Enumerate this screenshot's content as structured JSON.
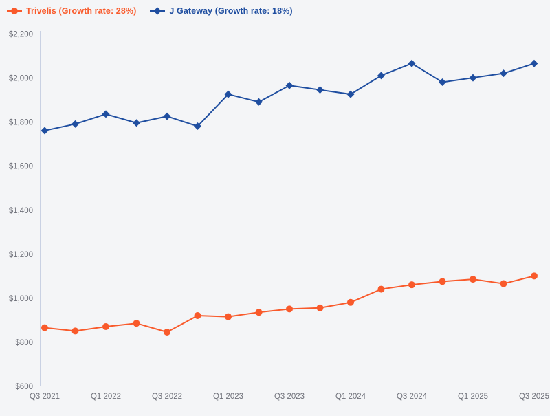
{
  "page": {
    "background_color": "#f4f5f7"
  },
  "chart_data": {
    "type": "line",
    "title": "",
    "xlabel": "",
    "ylabel": "",
    "x": [
      "Q3 2021",
      "Q4 2021",
      "Q1 2022",
      "Q2 2022",
      "Q3 2022",
      "Q4 2022",
      "Q1 2023",
      "Q2 2023",
      "Q3 2023",
      "Q4 2023",
      "Q1 2024",
      "Q2 2024",
      "Q3 2024",
      "Q4 2024",
      "Q1 2025",
      "Q2 2025",
      "Q3 2025"
    ],
    "x_tick_labels": [
      "Q3 2021",
      "Q1 2022",
      "Q3 2022",
      "Q1 2023",
      "Q3 2023",
      "Q1 2024",
      "Q3 2024",
      "Q1 2025",
      "Q3 2025"
    ],
    "x_tick_every": 2,
    "series": [
      {
        "name": "Trivelis (Growth rate: 28%)",
        "marker": "circle",
        "color": "#f95a2b",
        "values": [
          865,
          850,
          870,
          885,
          845,
          920,
          915,
          935,
          950,
          955,
          980,
          1040,
          1060,
          1075,
          1085,
          1065,
          1100
        ]
      },
      {
        "name": "J Gateway (Growth rate: 18%)",
        "marker": "diamond",
        "color": "#1f4ea0",
        "values": [
          1760,
          1790,
          1835,
          1795,
          1825,
          1780,
          1925,
          1890,
          1965,
          1945,
          1925,
          2010,
          2065,
          1980,
          2000,
          2020,
          2065
        ]
      }
    ],
    "ylim": [
      600,
      2200
    ],
    "y_tick_step": 200,
    "y_tick_prefix": "$",
    "grid": false,
    "legend_position": "top-left",
    "axis_color": "#c9d1e3",
    "tick_label_color": "#6e7079"
  }
}
